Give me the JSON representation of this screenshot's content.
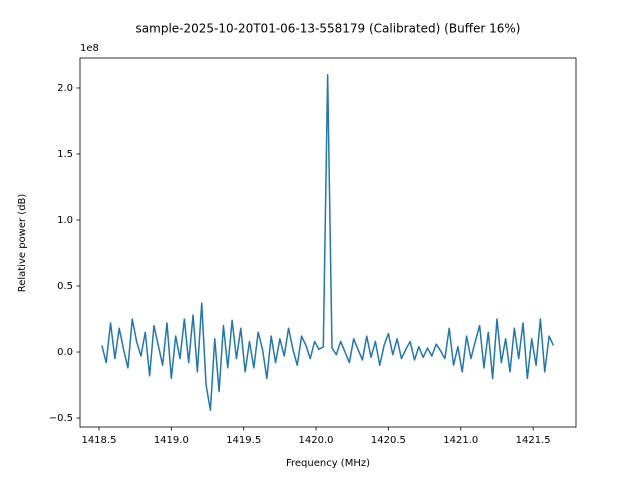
{
  "chart_data": {
    "type": "line",
    "title": "sample-2025-10-20T01-06-13-558179 (Calibrated) (Buffer 16%)",
    "x_label": "Frequency (MHz)",
    "y_label": "Relative power (dB)",
    "y_offset_label": "1e8",
    "xlim": [
      1418.369,
      1421.796
    ],
    "ylim": [
      -0.568,
      2.227
    ],
    "xticks": [
      1418.5,
      {
        "value": 1419,
        "label": "1419.0"
      },
      1419.5,
      {
        "value": 1420,
        "label": "1420.0"
      },
      1420.5,
      {
        "value": 1421,
        "label": "1421.0"
      },
      1421.5
    ],
    "yticks": [
      {
        "value": -0.5,
        "label": "−0.5"
      },
      {
        "value": 0,
        "label": "0.0"
      },
      0.5,
      {
        "value": 1,
        "label": "1.0"
      },
      1.5,
      {
        "value": 2,
        "label": "2.0"
      }
    ],
    "x": [
      1418.52,
      1418.55,
      1418.58,
      1418.61,
      1418.64,
      1418.67,
      1418.7,
      1418.73,
      1418.76,
      1418.79,
      1418.82,
      1418.85,
      1418.88,
      1418.91,
      1418.94,
      1418.97,
      1419,
      1419.03,
      1419.06,
      1419.09,
      1419.12,
      1419.15,
      1419.18,
      1419.21,
      1419.24,
      1419.27,
      1419.3,
      1419.33,
      1419.36,
      1419.39,
      1419.42,
      1419.45,
      1419.48,
      1419.51,
      1419.54,
      1419.57,
      1419.6,
      1419.63,
      1419.66,
      1419.69,
      1419.72,
      1419.75,
      1419.78,
      1419.81,
      1419.84,
      1419.87,
      1419.9,
      1419.93,
      1419.96,
      1419.99,
      1420.02,
      1420.05,
      1420.08,
      1420.11,
      1420.14,
      1420.17,
      1420.2,
      1420.23,
      1420.26,
      1420.29,
      1420.32,
      1420.35,
      1420.38,
      1420.41,
      1420.44,
      1420.47,
      1420.5,
      1420.53,
      1420.56,
      1420.59,
      1420.62,
      1420.65,
      1420.68,
      1420.71,
      1420.74,
      1420.77,
      1420.8,
      1420.83,
      1420.86,
      1420.89,
      1420.92,
      1420.95,
      1420.98,
      1421.01,
      1421.04,
      1421.07,
      1421.1,
      1421.13,
      1421.16,
      1421.19,
      1421.22,
      1421.25,
      1421.28,
      1421.31,
      1421.34,
      1421.37,
      1421.4,
      1421.43,
      1421.46,
      1421.49,
      1421.52,
      1421.55,
      1421.58,
      1421.61,
      1421.64
    ],
    "series": [
      {
        "color": "#1f77b4",
        "values": [
          0.05,
          -0.08,
          0.22,
          -0.05,
          0.18,
          0.02,
          -0.12,
          0.25,
          0.08,
          -0.03,
          0.15,
          -0.18,
          0.2,
          0.05,
          -0.1,
          0.22,
          -0.2,
          0.12,
          -0.05,
          0.25,
          -0.08,
          0.28,
          -0.15,
          0.37,
          -0.25,
          -0.44,
          0.1,
          -0.3,
          0.2,
          -0.12,
          0.24,
          -0.05,
          0.18,
          -0.15,
          0.08,
          -0.12,
          0.15,
          0.02,
          -0.2,
          0.12,
          -0.08,
          0.1,
          -0.03,
          0.18,
          0.02,
          -0.1,
          0.12,
          0.05,
          -0.05,
          0.08,
          0.02,
          0.04,
          2.1,
          0.03,
          -0.02,
          0.08,
          0.0,
          -0.08,
          0.1,
          0.02,
          -0.06,
          0.12,
          -0.04,
          0.08,
          -0.1,
          0.05,
          0.14,
          -0.02,
          0.1,
          -0.05,
          0.02,
          0.08,
          -0.06,
          0.04,
          -0.04,
          0.03,
          -0.03,
          0.06,
          0.01,
          -0.05,
          0.18,
          -0.1,
          0.04,
          -0.15,
          0.12,
          -0.05,
          0.08,
          0.2,
          -0.12,
          0.15,
          -0.2,
          0.25,
          -0.08,
          0.1,
          -0.15,
          0.18,
          -0.05,
          0.22,
          -0.2,
          0.1,
          -0.1,
          0.25,
          -0.15,
          0.12,
          0.05
        ]
      }
    ]
  }
}
